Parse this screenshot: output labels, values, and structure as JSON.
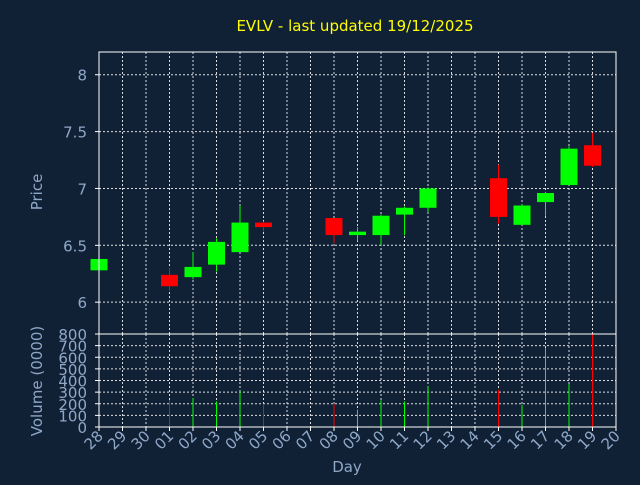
{
  "chart_data": {
    "type": "candlestick",
    "title": "EVLV - last updated 19/12/2025",
    "xlabel": "Day",
    "colors": {
      "background": "#102035",
      "title": "#ffff00",
      "axis_text": "#8fa8c8",
      "frame": "#ffffff",
      "up": "#00ff00",
      "down": "#ff0000"
    },
    "grid": true,
    "price": {
      "ylabel": "Price",
      "ylim": [
        5.72,
        8.2
      ],
      "yticks": [
        6,
        6.5,
        7,
        7.5,
        8
      ],
      "ytick_labels": [
        "6",
        "6.5",
        "7",
        "7.5",
        "8"
      ]
    },
    "volume": {
      "ylabel": "Volume (0000)",
      "ylim": [
        0,
        800
      ],
      "yticks": [
        0,
        100,
        200,
        300,
        400,
        500,
        600,
        700,
        800
      ],
      "ytick_labels": [
        "0",
        "100",
        "200",
        "300",
        "400",
        "500",
        "600",
        "700",
        "800"
      ]
    },
    "xticks": [
      0,
      1,
      2,
      3,
      4,
      5,
      6,
      7,
      8,
      9,
      10,
      11,
      12,
      13,
      14,
      15,
      16,
      17,
      18,
      19,
      20,
      21,
      22
    ],
    "xtick_labels": [
      "28",
      "29",
      "30",
      "01",
      "02",
      "03",
      "04",
      "05",
      "06",
      "07",
      "08",
      "09",
      "10",
      "11",
      "12",
      "13",
      "14",
      "15",
      "16",
      "17",
      "18",
      "19",
      "20"
    ],
    "xlim": [
      0,
      22
    ],
    "candles": [
      {
        "x": 0,
        "open": 6.28,
        "close": 6.38,
        "high": 6.39,
        "low": 6.27,
        "volume": 0
      },
      {
        "x": 3,
        "open": 6.24,
        "close": 6.14,
        "high": 6.3,
        "low": 6.1,
        "volume": 230
      },
      {
        "x": 4,
        "open": 6.22,
        "close": 6.31,
        "high": 6.44,
        "low": 6.2,
        "volume": 250
      },
      {
        "x": 5,
        "open": 6.33,
        "close": 6.53,
        "high": 6.56,
        "low": 6.27,
        "volume": 220
      },
      {
        "x": 6,
        "open": 6.44,
        "close": 6.7,
        "high": 6.85,
        "low": 6.44,
        "volume": 310
      },
      {
        "x": 7,
        "open": 6.7,
        "close": 6.66,
        "high": 6.71,
        "low": 6.62,
        "volume": 200
      },
      {
        "x": 10,
        "open": 6.74,
        "close": 6.59,
        "high": 6.74,
        "low": 6.52,
        "volume": 200
      },
      {
        "x": 11,
        "open": 6.59,
        "close": 6.62,
        "high": 6.66,
        "low": 6.54,
        "volume": 150
      },
      {
        "x": 12,
        "open": 6.59,
        "close": 6.76,
        "high": 6.77,
        "low": 6.5,
        "volume": 230
      },
      {
        "x": 13,
        "open": 6.77,
        "close": 6.83,
        "high": 6.84,
        "low": 6.59,
        "volume": 220
      },
      {
        "x": 14,
        "open": 6.83,
        "close": 7.0,
        "high": 7.01,
        "low": 6.79,
        "volume": 350
      },
      {
        "x": 17,
        "open": 7.09,
        "close": 6.75,
        "high": 7.21,
        "low": 6.69,
        "volume": 320
      },
      {
        "x": 18,
        "open": 6.68,
        "close": 6.85,
        "high": 6.86,
        "low": 6.68,
        "volume": 190
      },
      {
        "x": 19,
        "open": 6.88,
        "close": 6.96,
        "high": 6.97,
        "low": 6.76,
        "volume": 680
      },
      {
        "x": 20,
        "open": 7.03,
        "close": 7.35,
        "high": 7.37,
        "low": 7.03,
        "volume": 370
      },
      {
        "x": 21,
        "open": 7.38,
        "close": 7.2,
        "high": 7.49,
        "low": 7.19,
        "volume": 800
      }
    ]
  }
}
